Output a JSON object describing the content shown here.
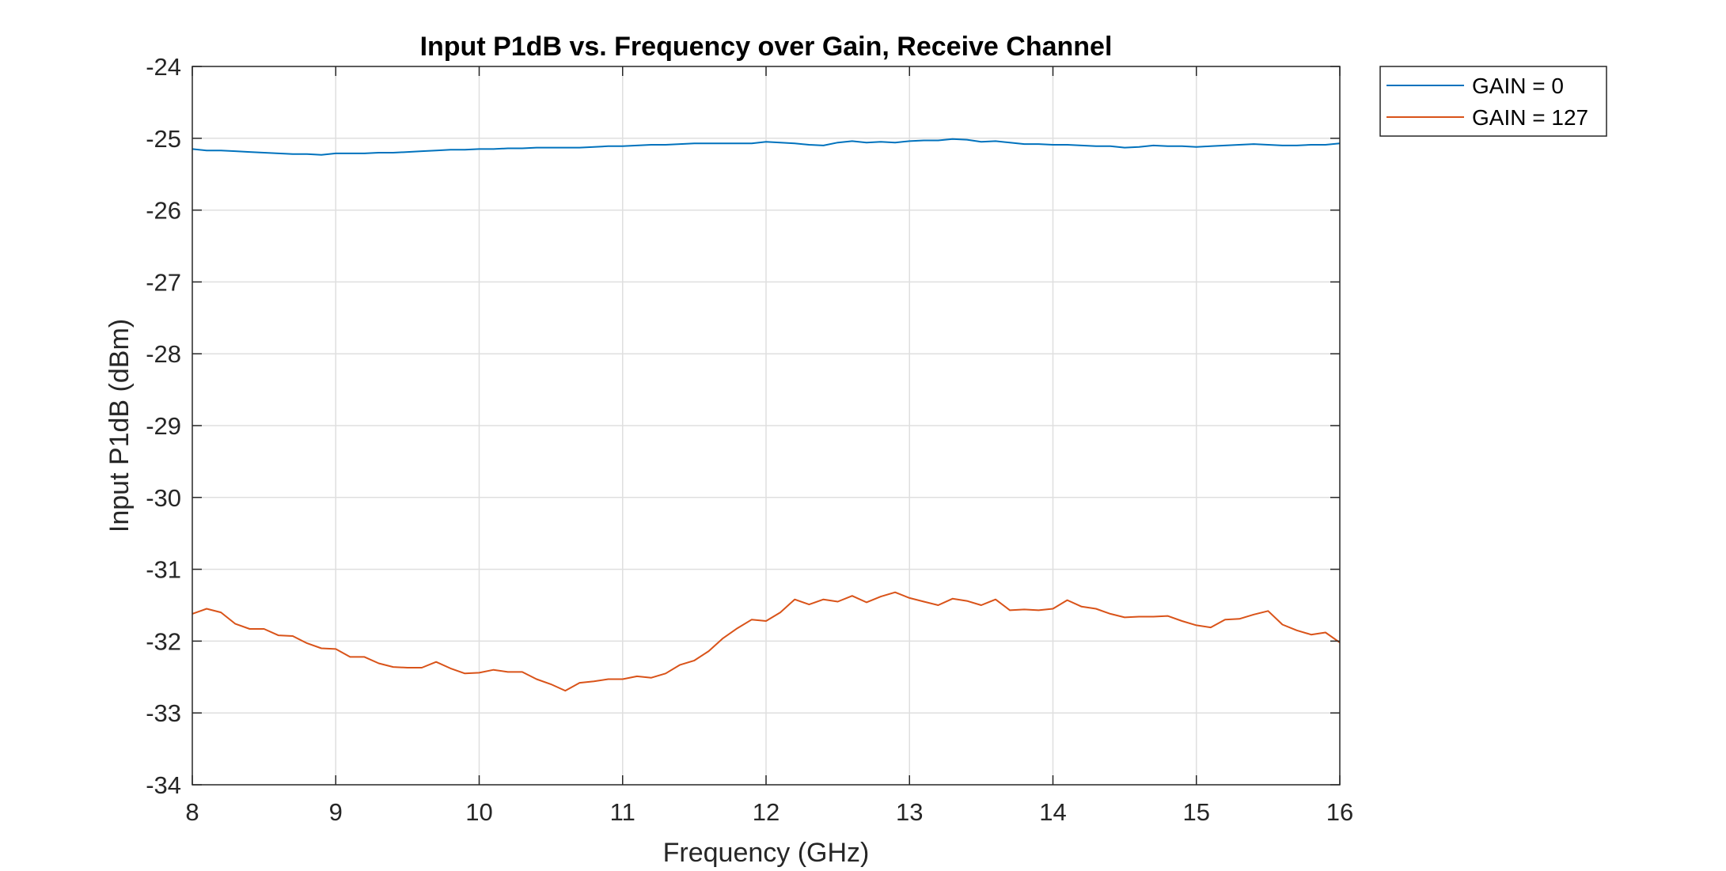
{
  "chart_data": {
    "type": "line",
    "title": "Input P1dB vs. Frequency over Gain, Receive Channel",
    "xlabel": "Frequency (GHz)",
    "ylabel": "Input P1dB (dBm)",
    "xlim": [
      8,
      16
    ],
    "ylim": [
      -34,
      -24
    ],
    "xticks": [
      "8",
      "9",
      "10",
      "11",
      "12",
      "13",
      "14",
      "15",
      "16"
    ],
    "yticks": [
      "-24",
      "-25",
      "-26",
      "-27",
      "-28",
      "-29",
      "-30",
      "-31",
      "-32",
      "-33",
      "-34"
    ],
    "grid": true,
    "legend_position": "outside-top-right",
    "x": [
      8.0,
      8.1,
      8.2,
      8.3,
      8.4,
      8.5,
      8.6,
      8.7,
      8.8,
      8.9,
      9.0,
      9.1,
      9.2,
      9.3,
      9.4,
      9.5,
      9.6,
      9.7,
      9.8,
      9.9,
      10.0,
      10.1,
      10.2,
      10.3,
      10.4,
      10.5,
      10.6,
      10.7,
      10.8,
      10.9,
      11.0,
      11.1,
      11.2,
      11.3,
      11.4,
      11.5,
      11.6,
      11.7,
      11.8,
      11.9,
      12.0,
      12.1,
      12.2,
      12.3,
      12.4,
      12.5,
      12.6,
      12.7,
      12.8,
      12.9,
      13.0,
      13.1,
      13.2,
      13.3,
      13.4,
      13.5,
      13.6,
      13.7,
      13.8,
      13.9,
      14.0,
      14.1,
      14.2,
      14.3,
      14.4,
      14.5,
      14.6,
      14.7,
      14.8,
      14.9,
      15.0,
      15.1,
      15.2,
      15.3,
      15.4,
      15.5,
      15.6,
      15.7,
      15.8,
      15.9,
      16.0
    ],
    "series": [
      {
        "name": "GAIN = 0",
        "color": "#0072BD",
        "values": [
          -25.15,
          -25.17,
          -25.17,
          -25.18,
          -25.19,
          -25.2,
          -25.21,
          -25.22,
          -25.22,
          -25.23,
          -25.21,
          -25.21,
          -25.21,
          -25.2,
          -25.2,
          -25.19,
          -25.18,
          -25.17,
          -25.16,
          -25.16,
          -25.15,
          -25.15,
          -25.14,
          -25.14,
          -25.13,
          -25.13,
          -25.13,
          -25.13,
          -25.12,
          -25.11,
          -25.11,
          -25.1,
          -25.09,
          -25.09,
          -25.08,
          -25.07,
          -25.07,
          -25.07,
          -25.07,
          -25.07,
          -25.05,
          -25.06,
          -25.07,
          -25.09,
          -25.1,
          -25.06,
          -25.04,
          -25.06,
          -25.05,
          -25.06,
          -25.04,
          -25.03,
          -25.03,
          -25.01,
          -25.02,
          -25.05,
          -25.04,
          -25.06,
          -25.08,
          -25.08,
          -25.09,
          -25.09,
          -25.1,
          -25.11,
          -25.11,
          -25.13,
          -25.12,
          -25.1,
          -25.11,
          -25.11,
          -25.12,
          -25.11,
          -25.1,
          -25.09,
          -25.08,
          -25.09,
          -25.1,
          -25.1,
          -25.09,
          -25.09,
          -25.07
        ]
      },
      {
        "name": "GAIN = 127",
        "color": "#D95319",
        "values": [
          -31.62,
          -31.55,
          -31.6,
          -31.76,
          -31.83,
          -31.83,
          -31.92,
          -31.93,
          -32.03,
          -32.1,
          -32.11,
          -32.22,
          -32.22,
          -32.31,
          -32.36,
          -32.37,
          -32.37,
          -32.29,
          -32.38,
          -32.45,
          -32.44,
          -32.4,
          -32.43,
          -32.43,
          -32.53,
          -32.6,
          -32.69,
          -32.58,
          -32.56,
          -32.53,
          -32.53,
          -32.49,
          -32.51,
          -32.45,
          -32.33,
          -32.27,
          -32.14,
          -31.96,
          -31.82,
          -31.7,
          -31.72,
          -31.6,
          -31.42,
          -31.49,
          -31.42,
          -31.45,
          -31.37,
          -31.46,
          -31.38,
          -31.32,
          -31.4,
          -31.45,
          -31.5,
          -31.41,
          -31.44,
          -31.5,
          -31.42,
          -31.57,
          -31.56,
          -31.57,
          -31.55,
          -31.43,
          -31.52,
          -31.55,
          -31.62,
          -31.67,
          -31.66,
          -31.66,
          -31.65,
          -31.72,
          -31.78,
          -31.81,
          -31.7,
          -31.69,
          -31.63,
          -31.58,
          -31.77,
          -31.85,
          -31.91,
          -31.88,
          -32.02
        ]
      }
    ]
  },
  "colors": {
    "axes": "#262626",
    "grid": "#DFDFDF",
    "background": "#FFFFFF"
  }
}
